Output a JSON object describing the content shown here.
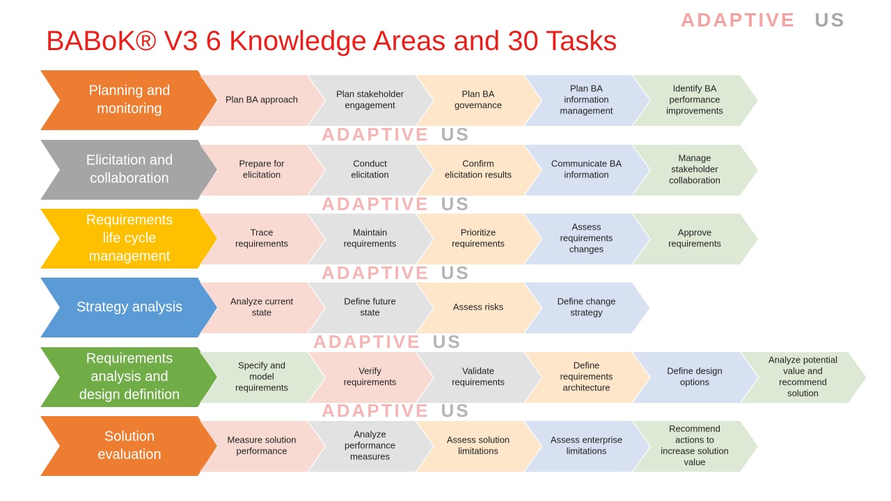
{
  "title": "BABoK® V3 6 Knowledge Areas and 30 Tasks",
  "logo": [
    "ADAPTIVE",
    "US"
  ],
  "watermarks": [
    [
      "ADAPTIVE",
      "US"
    ],
    [
      "ADAPTIVE",
      "US"
    ],
    [
      "ADAPTIVE",
      "US"
    ],
    [
      "ADAPTIVE",
      "US"
    ],
    [
      "ADAPTIVE",
      "US"
    ]
  ],
  "rows": [
    {
      "area": [
        "Planning and",
        "monitoring"
      ],
      "color": "#ed7d31",
      "tasks": [
        {
          "lines": [
            "Plan BA approach"
          ],
          "color": "#f8dad3"
        },
        {
          "lines": [
            "Plan stakeholder",
            "engagement"
          ],
          "color": "#e2e2e2"
        },
        {
          "lines": [
            "Plan BA",
            "governance"
          ],
          "color": "#fde6c9"
        },
        {
          "lines": [
            "Plan BA",
            "information",
            "management"
          ],
          "color": "#d7e1f1"
        },
        {
          "lines": [
            "Identify BA",
            "performance",
            "improvements"
          ],
          "color": "#dde9d5"
        }
      ]
    },
    {
      "area": [
        "Elicitation and",
        "collaboration"
      ],
      "color": "#a5a5a5",
      "tasks": [
        {
          "lines": [
            "Prepare for",
            "elicitation"
          ],
          "color": "#f8dad3"
        },
        {
          "lines": [
            "Conduct",
            "elicitation"
          ],
          "color": "#e2e2e2"
        },
        {
          "lines": [
            "Confirm",
            "elicitation results"
          ],
          "color": "#fde6c9"
        },
        {
          "lines": [
            "Communicate BA",
            "information"
          ],
          "color": "#d7e1f1"
        },
        {
          "lines": [
            "Manage",
            "stakeholder",
            "collaboration"
          ],
          "color": "#dde9d5"
        }
      ]
    },
    {
      "area": [
        "Requirements",
        "life cycle",
        "management"
      ],
      "color": "#ffc000",
      "tasks": [
        {
          "lines": [
            "Trace",
            "requirements"
          ],
          "color": "#f8dad3"
        },
        {
          "lines": [
            "Maintain",
            "requirements"
          ],
          "color": "#e2e2e2"
        },
        {
          "lines": [
            "Prioritize",
            "requirements"
          ],
          "color": "#fde6c9"
        },
        {
          "lines": [
            "Assess",
            "requirements",
            "changes"
          ],
          "color": "#d7e1f1"
        },
        {
          "lines": [
            "Approve",
            "requirements"
          ],
          "color": "#dde9d5"
        }
      ]
    },
    {
      "area": [
        "Strategy analysis"
      ],
      "color": "#5b9bd5",
      "tasks": [
        {
          "lines": [
            "Analyze current",
            "state"
          ],
          "color": "#f8dad3"
        },
        {
          "lines": [
            "Define future",
            "state"
          ],
          "color": "#e2e2e2"
        },
        {
          "lines": [
            "Assess risks"
          ],
          "color": "#fde6c9"
        },
        {
          "lines": [
            "Define change",
            "strategy"
          ],
          "color": "#d7e1f1"
        }
      ]
    },
    {
      "area": [
        "Requirements",
        "analysis and",
        "design definition"
      ],
      "color": "#70ad47",
      "tasks": [
        {
          "lines": [
            "Specify and",
            "model",
            "requirements"
          ],
          "color": "#dde9d5"
        },
        {
          "lines": [
            "Verify",
            "requirements"
          ],
          "color": "#f8dad3"
        },
        {
          "lines": [
            "Validate",
            "requirements"
          ],
          "color": "#e2e2e2"
        },
        {
          "lines": [
            "Define",
            "requirements",
            "architecture"
          ],
          "color": "#fde6c9"
        },
        {
          "lines": [
            "Define design",
            "options"
          ],
          "color": "#d7e1f1"
        },
        {
          "lines": [
            "Analyze potential",
            "value and",
            "recommend",
            "solution"
          ],
          "color": "#dde9d5"
        }
      ]
    },
    {
      "area": [
        "Solution",
        "evaluation"
      ],
      "color": "#ed7d31",
      "tasks": [
        {
          "lines": [
            "Measure solution",
            "performance"
          ],
          "color": "#f8dad3"
        },
        {
          "lines": [
            "Analyze",
            "performance",
            "measures"
          ],
          "color": "#e2e2e2"
        },
        {
          "lines": [
            "Assess solution",
            "limitations"
          ],
          "color": "#fde6c9"
        },
        {
          "lines": [
            "Assess enterprise",
            "limitations"
          ],
          "color": "#d7e1f1"
        },
        {
          "lines": [
            "Recommend",
            "actions to",
            "increase solution",
            "value"
          ],
          "color": "#dde9d5"
        }
      ]
    }
  ]
}
